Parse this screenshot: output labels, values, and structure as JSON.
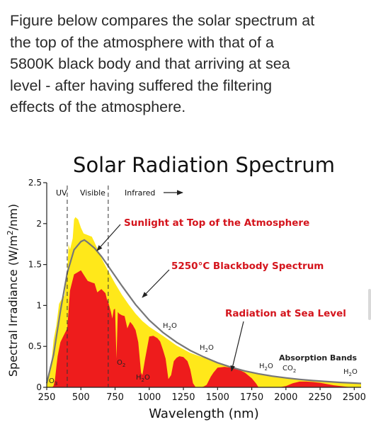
{
  "intro": {
    "lines": [
      "Figure below compares the solar spectrum at",
      "the top of the atmosphere with that of a",
      "5800K black body and that arriving at sea",
      "level - after having suffered the filtering",
      "effects of the atmosphere."
    ]
  },
  "colors": {
    "top_atmosphere": "#ffe81a",
    "sea_level": "#ee1c1c",
    "blackbody_curve": "#777777",
    "annotation_text": "#d4141c",
    "axis": "#222222"
  },
  "chart_data": {
    "type": "area",
    "title": "Solar Radiation Spectrum",
    "xlabel": "Wavelength (nm)",
    "ylabel": "Spectral Irradiance (W/m²/nm)",
    "ylabel_parts": {
      "prefix": "Spectral Irradiance (W/m",
      "sup": "2",
      "suffix": "/nm)"
    },
    "xlim": [
      250,
      2550
    ],
    "ylim": [
      0,
      2.5
    ],
    "x_ticks": [
      250,
      500,
      750,
      1000,
      1250,
      1500,
      1750,
      2000,
      2250,
      2500
    ],
    "x_tick_labels": [
      "250",
      "500",
      "750",
      "1000",
      "1250",
      "1500",
      "1750",
      "2000",
      "2250",
      "2500"
    ],
    "y_ticks": [
      0,
      0.5,
      1,
      1.5,
      2,
      2.5
    ],
    "y_tick_labels": [
      "0",
      "0.5",
      "1",
      "1.5",
      "2",
      "2.5"
    ],
    "grid": false,
    "regions": [
      {
        "label": "UV",
        "from": 250,
        "to": 400
      },
      {
        "label": "Visible",
        "from": 400,
        "to": 700
      },
      {
        "label": "Infrared",
        "from": 700,
        "to": 2550
      }
    ],
    "region_boundaries": [
      400,
      700
    ],
    "series": [
      {
        "name": "Sunlight at Top of the Atmosphere",
        "style": "filled",
        "x": [
          250,
          280,
          300,
          320,
          340,
          360,
          380,
          400,
          410,
          420,
          440,
          450,
          460,
          480,
          500,
          520,
          550,
          580,
          600,
          650,
          700,
          750,
          800,
          850,
          900,
          950,
          1000,
          1100,
          1200,
          1300,
          1400,
          1500,
          1600,
          1700,
          1800,
          1900,
          2000,
          2100,
          2200,
          2300,
          2400,
          2500,
          2550
        ],
        "y": [
          0.06,
          0.22,
          0.58,
          0.75,
          1.02,
          1.08,
          1.12,
          1.42,
          1.75,
          1.68,
          1.82,
          2.05,
          2.08,
          2.05,
          1.95,
          1.88,
          1.86,
          1.84,
          1.77,
          1.58,
          1.42,
          1.27,
          1.13,
          1.01,
          0.9,
          0.81,
          0.74,
          0.63,
          0.51,
          0.42,
          0.36,
          0.3,
          0.25,
          0.2,
          0.16,
          0.13,
          0.11,
          0.09,
          0.075,
          0.065,
          0.055,
          0.045,
          0.042
        ]
      },
      {
        "name": "Radiation at Sea Level",
        "style": "filled",
        "x": [
          250,
          290,
          300,
          310,
          320,
          330,
          340,
          350,
          370,
          400,
          420,
          450,
          470,
          500,
          530,
          550,
          580,
          600,
          620,
          650,
          680,
          690,
          700,
          720,
          730,
          740,
          750,
          760,
          770,
          780,
          800,
          820,
          840,
          860,
          880,
          900,
          920,
          940,
          950,
          970,
          1000,
          1030,
          1060,
          1080,
          1100,
          1120,
          1140,
          1160,
          1180,
          1200,
          1220,
          1250,
          1280,
          1300,
          1320,
          1340,
          1350,
          1380,
          1400,
          1420,
          1450,
          1470,
          1500,
          1550,
          1600,
          1650,
          1700,
          1750,
          1780,
          1800,
          1850,
          1900,
          1950,
          2000,
          2050,
          2100,
          2150,
          2200,
          2250,
          2300,
          2350,
          2400,
          2450,
          2500,
          2550
        ],
        "y": [
          0.0,
          0.0,
          0.02,
          0.09,
          0.24,
          0.38,
          0.47,
          0.55,
          0.62,
          0.72,
          1.18,
          1.38,
          1.4,
          1.43,
          1.35,
          1.3,
          1.28,
          1.27,
          1.16,
          1.2,
          1.15,
          1.08,
          1.04,
          0.92,
          0.84,
          0.95,
          0.96,
          0.35,
          0.92,
          0.9,
          0.88,
          0.87,
          0.72,
          0.8,
          0.76,
          0.7,
          0.55,
          0.18,
          0.15,
          0.35,
          0.62,
          0.63,
          0.6,
          0.56,
          0.46,
          0.35,
          0.1,
          0.15,
          0.32,
          0.36,
          0.38,
          0.37,
          0.32,
          0.22,
          0.05,
          0.0,
          0.0,
          0.0,
          0.01,
          0.03,
          0.13,
          0.18,
          0.24,
          0.25,
          0.24,
          0.22,
          0.18,
          0.11,
          0.05,
          0.0,
          0.0,
          0.0,
          0.0,
          0.015,
          0.05,
          0.07,
          0.07,
          0.065,
          0.055,
          0.04,
          0.025,
          0.015,
          0.005,
          0.0,
          0.0
        ]
      },
      {
        "name": "5250°C Blackbody Spectrum",
        "style": "line",
        "x": [
          250,
          300,
          350,
          400,
          450,
          500,
          525,
          550,
          600,
          650,
          700,
          800,
          900,
          1000,
          1100,
          1200,
          1300,
          1400,
          1500,
          1600,
          1700,
          1800,
          1900,
          2000,
          2100,
          2200,
          2300,
          2400,
          2500,
          2550
        ],
        "y": [
          0.05,
          0.4,
          0.93,
          1.4,
          1.68,
          1.78,
          1.8,
          1.77,
          1.7,
          1.6,
          1.48,
          1.24,
          1.01,
          0.82,
          0.67,
          0.55,
          0.45,
          0.37,
          0.3,
          0.245,
          0.2,
          0.165,
          0.137,
          0.115,
          0.097,
          0.082,
          0.07,
          0.06,
          0.052,
          0.048
        ]
      }
    ],
    "annotations": {
      "sunlight": "Sunlight at Top of the Atmosphere",
      "blackbody": "5250°C Blackbody Spectrum",
      "sea_level": "Radiation at Sea Level",
      "absorption": "Absorption Bands"
    },
    "molecule_labels": [
      {
        "base": "O",
        "sub": "3"
      },
      {
        "base": "O",
        "sub": "2"
      },
      {
        "base": "H",
        "sub": "2",
        "tail": "O"
      },
      {
        "base": "H",
        "sub": "2",
        "tail": "O"
      },
      {
        "base": "H",
        "sub": "2",
        "tail": "O"
      },
      {
        "base": "H",
        "sub": "2",
        "tail": "O"
      },
      {
        "base": "CO",
        "sub": "2"
      },
      {
        "base": "H",
        "sub": "2",
        "tail": "O"
      }
    ]
  }
}
